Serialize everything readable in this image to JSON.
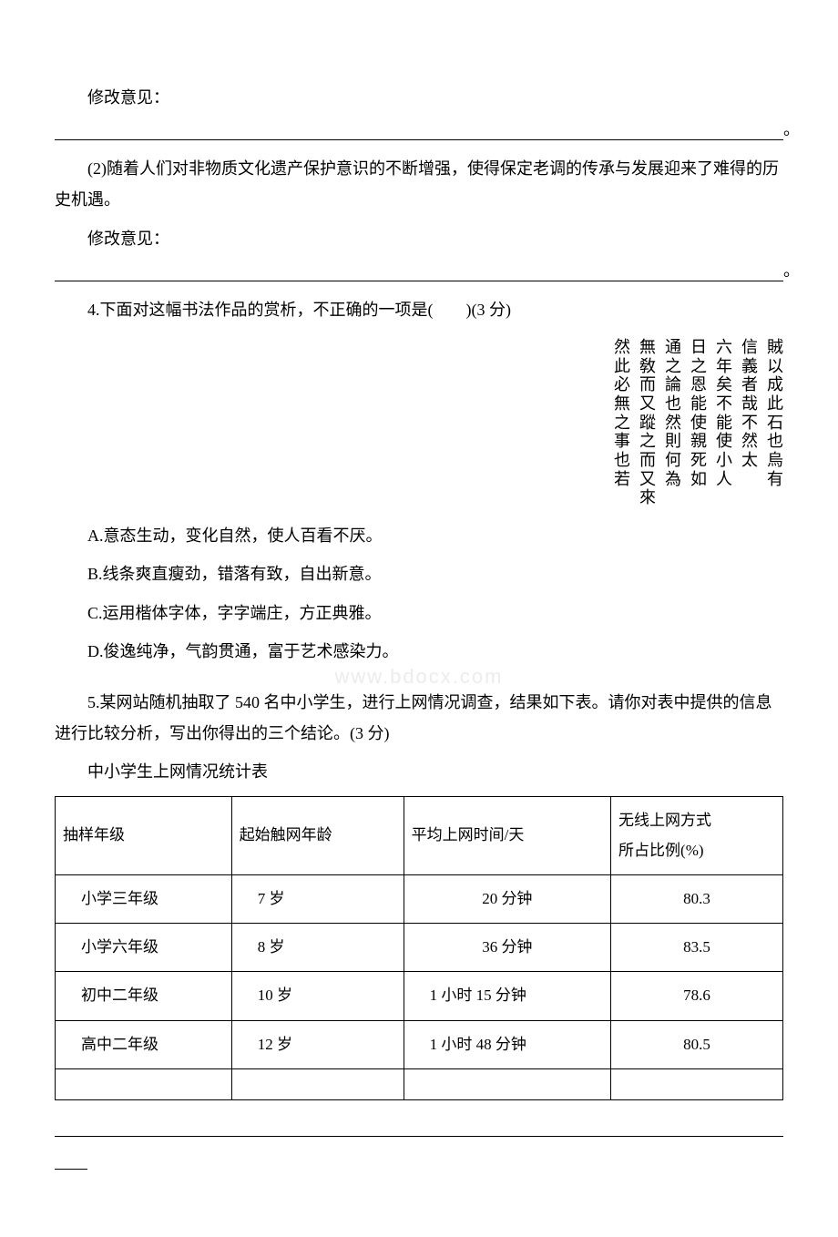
{
  "q3": {
    "revise_label": "修改意见：",
    "item2": "(2)随着人们对非物质文化遗产保护意识的不断增强，使得保定老调的传承与发展迎来了难得的历史机遇。"
  },
  "q4": {
    "stem": "4.下面对这幅书法作品的赏析，不正确的一项是(　　)(3 分)",
    "calligraphy_columns": [
      "賊以成此石也烏有",
      "信義者哉不然太",
      "六年矣不能使小人",
      "日之恩能使親死如",
      "通之論也然則何為",
      "無敎而又蹤之而又來",
      "然此必無之事也若"
    ],
    "options": {
      "A": "A.意态生动，变化自然，使人百看不厌。",
      "B": "B.线条爽直瘦劲，错落有致，自出新意。",
      "C": "C.运用楷体字体，字字端庄，方正典雅。",
      "D": "D.俊逸纯净，气韵贯通，富于艺术感染力。"
    }
  },
  "watermark": "www.bdocx.com",
  "q5": {
    "stem": "5.某网站随机抽取了 540 名中小学生，进行上网情况调查，结果如下表。请你对表中提供的信息进行比较分析，写出你得出的三个结论。(3 分)",
    "table_title": "中小学生上网情况统计表",
    "headers": {
      "c1": "抽样年级",
      "c2": "起始触网年龄",
      "c3": "平均上网时间/天",
      "c4_line1": "无线上网方式",
      "c4_line2": "所占比例(%)"
    },
    "rows": [
      {
        "grade": "小学三年级",
        "age": "7 岁",
        "time": "20 分钟",
        "ratio": "80.3"
      },
      {
        "grade": "小学六年级",
        "age": "8 岁",
        "time": "36 分钟",
        "ratio": "83.5"
      },
      {
        "grade": "初中二年级",
        "age": "10 岁",
        "time": "1 小时 15 分钟",
        "ratio": "78.6"
      },
      {
        "grade": "高中二年级",
        "age": "12 岁",
        "time": "1 小时 48 分钟",
        "ratio": "80.5"
      }
    ]
  }
}
